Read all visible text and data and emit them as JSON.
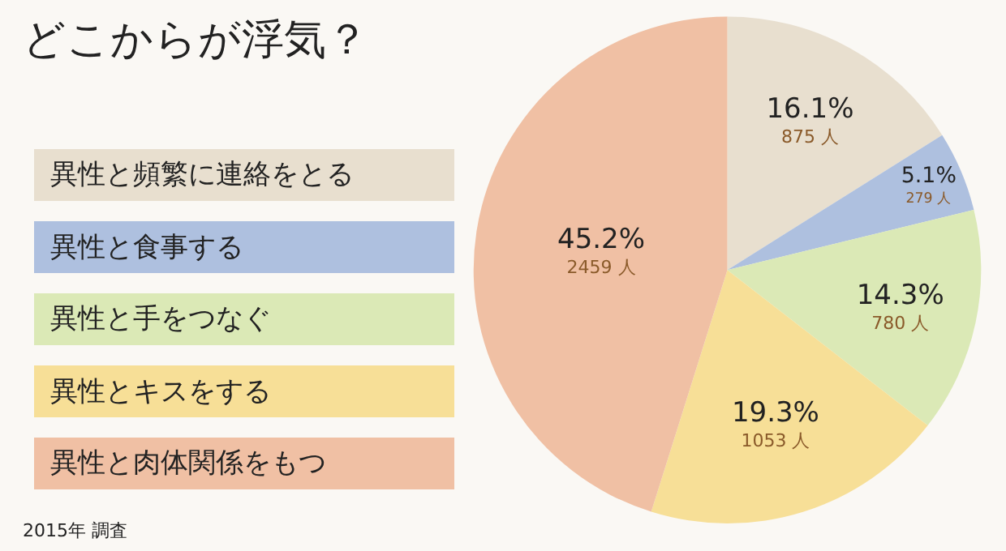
{
  "chart_data": {
    "type": "pie",
    "title": "どこからが浮気？",
    "categories": [
      "異性と頻繁に連絡をとる",
      "異性と食事する",
      "異性と手をつなぐ",
      "異性とキスをする",
      "異性と肉体関係をもつ"
    ],
    "values": [
      875,
      279,
      780,
      1053,
      2459
    ],
    "value_labels": [
      "16.1%\n875 人",
      "5.1%\n279 人",
      "14.3%\n780 人",
      "19.3%\n1053 人",
      "45.2%\n2459 人"
    ],
    "colors": [
      "#e8dfcf",
      "#aec0df",
      "#dbe9b6",
      "#f7df97",
      "#f0c0a4"
    ],
    "legend": "left",
    "annotations": [
      "2015年 調査"
    ]
  }
}
